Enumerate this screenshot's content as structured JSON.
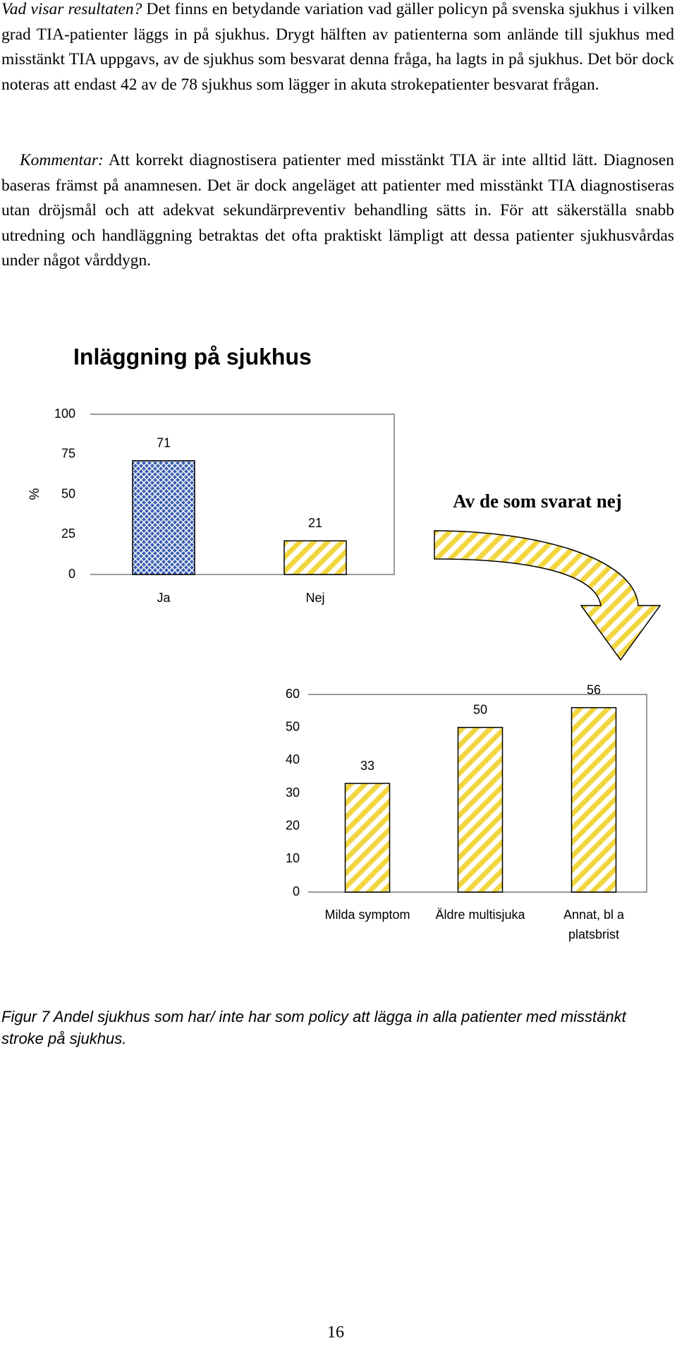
{
  "text": {
    "paragraphs": [
      {
        "lead": "Vad visar resultaten?",
        "body": "Det finns en betydande variation vad gäller policyn på svenska sjukhus i vilken grad TIA-patienter läggs in på sjukhus. Drygt hälften av patienterna som anlände till sjukhus med misstänkt TIA uppgavs, av de sjukhus som besvarat denna fråga, ha lagts in på sjukhus. Det bör dock noteras att endast 42 av de 78 sjukhus som lägger in akuta strokepatienter besvarat frågan."
      },
      {
        "lead": "Kommentar:",
        "body": "Att korrekt diagnostisera patienter med misstänkt TIA är inte alltid lätt. Diagnosen baseras främst på anamnesen. Det är dock angeläget att patienter med misstänkt TIA diagnostiseras utan dröjsmål och att adekvat sekundärpreventiv behandling sätts in. För att säkerställa snabb utredning och handläggning betraktas det ofta praktiskt lämpligt att dessa patienter sjukhusvårdas under något vårddygn."
      }
    ]
  },
  "chart_data": [
    {
      "type": "bar",
      "title": "Inläggning på sjukhus",
      "y_label": "%",
      "categories": [
        "Ja",
        "Nej"
      ],
      "values": [
        71,
        21
      ],
      "colors": [
        "#3a5fb0",
        "#f2d640"
      ],
      "patterns": [
        "crosshatch",
        "diagonal"
      ],
      "ylim": [
        0,
        100
      ],
      "yticks": [
        0,
        25,
        50,
        75,
        100
      ],
      "annotation": "Av de som svarat nej"
    },
    {
      "type": "bar",
      "categories": [
        "Milda symptom",
        "Äldre multisjuka",
        "Annat, bl a platsbrist"
      ],
      "values": [
        33,
        50,
        56
      ],
      "colors": [
        "#f2d640",
        "#f2d640",
        "#f2d640"
      ],
      "patterns": [
        "diagonal",
        "diagonal",
        "diagonal"
      ],
      "ylim": [
        0,
        60
      ],
      "yticks": [
        0,
        10,
        20,
        30,
        40,
        50,
        60
      ]
    }
  ],
  "caption": "Figur 7 Andel sjukhus som har/ inte har som policy att lägga in alla patienter med misstänkt stroke på sjukhus.",
  "page_number": "16"
}
